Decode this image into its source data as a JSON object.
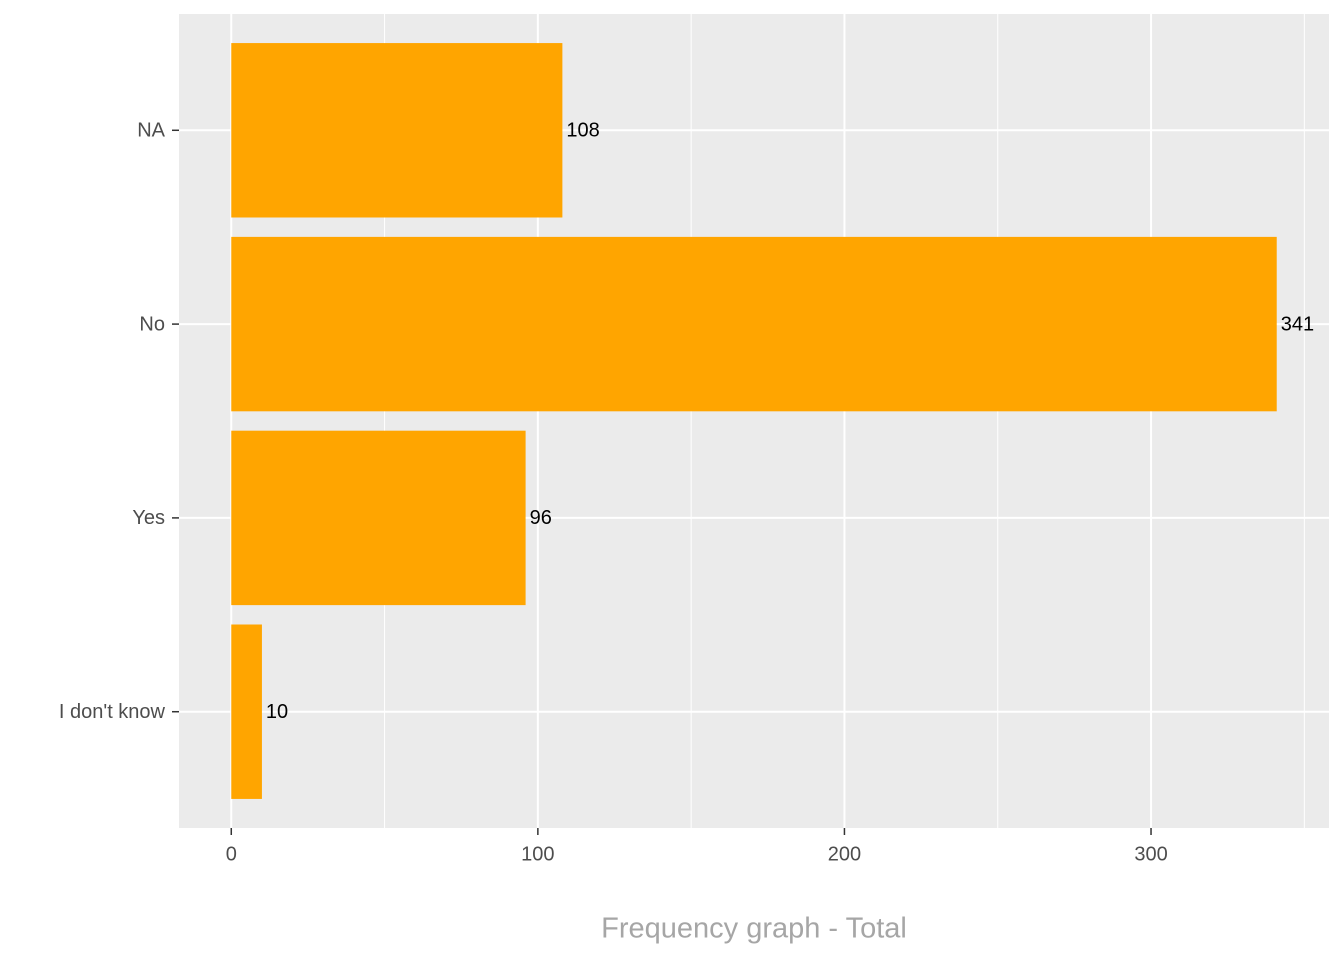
{
  "chart_data": {
    "type": "hbar",
    "x_label": "Frequency graph - Total",
    "categories": [
      "I don't know",
      "Yes",
      "No",
      "NA"
    ],
    "values": [
      10,
      96,
      341,
      108
    ],
    "color": "#ffa500",
    "xlim": [
      -17.05,
      358.05
    ],
    "xticks": [
      0,
      100,
      200,
      300
    ],
    "xminorticks": [
      50,
      150,
      250,
      350
    ],
    "grid": true
  }
}
